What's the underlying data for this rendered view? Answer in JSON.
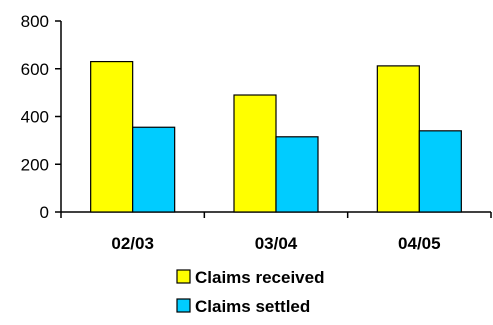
{
  "chart_data": {
    "type": "bar",
    "title": "",
    "xlabel": "",
    "ylabel": "",
    "categories": [
      "02/03",
      "03/04",
      "04/05"
    ],
    "series": [
      {
        "name": "Claims received",
        "color": "#ffff00",
        "values": [
          630,
          490,
          612
        ]
      },
      {
        "name": "Claims settled",
        "color": "#00ccff",
        "values": [
          355,
          315,
          340
        ]
      }
    ],
    "ylim": [
      0,
      800
    ],
    "yticks": [
      "0",
      "200",
      "400",
      "600",
      "800"
    ],
    "grid": false,
    "legend_position": "bottom"
  }
}
